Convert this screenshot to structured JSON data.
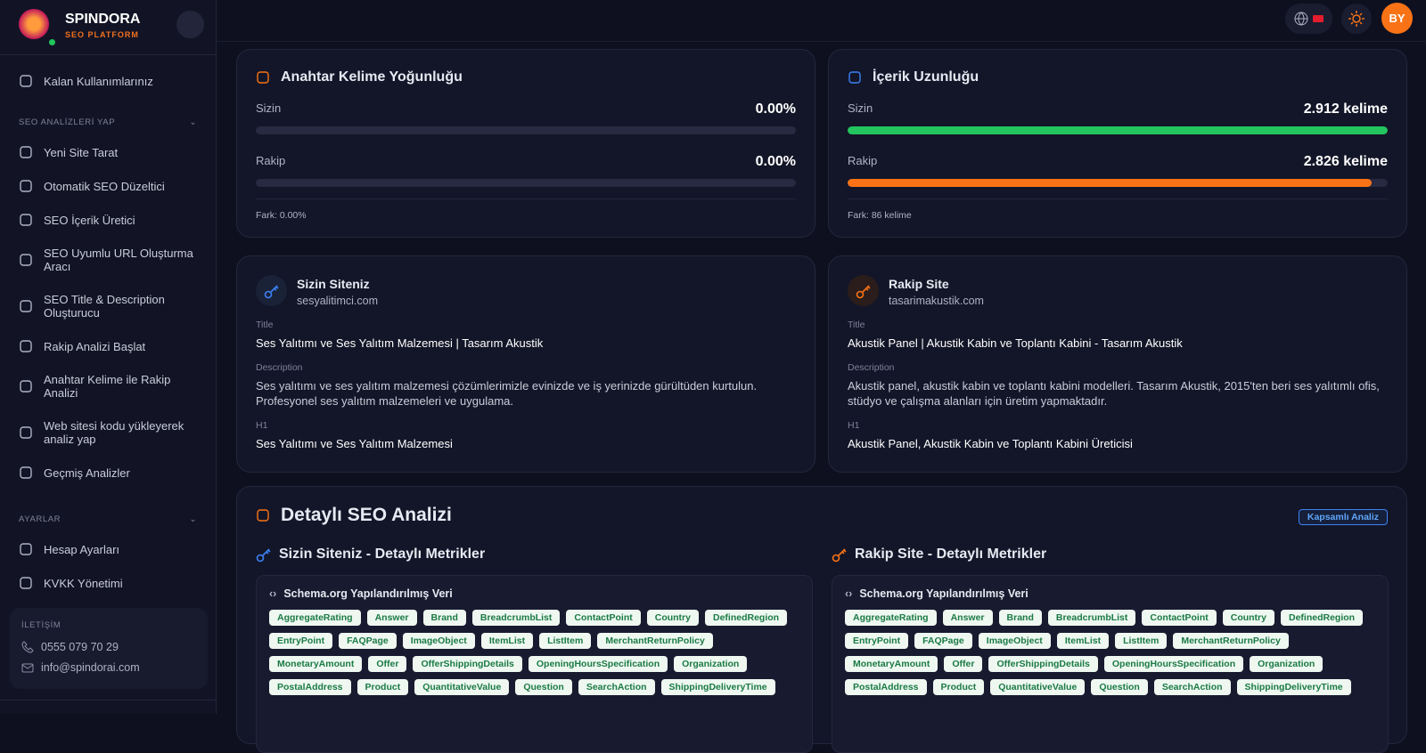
{
  "sidebar": {
    "brand": "SPINDORA",
    "tagline": "SEO PLATFORM",
    "usage": "Kalan Kullanımlarınız",
    "sections": [
      {
        "title": "SEO ANALİZLERİ YAP",
        "items": [
          "Yeni Site Tarat",
          "Otomatik SEO Düzeltici",
          "SEO İçerik Üretici",
          "SEO Uyumlu URL Oluşturma Aracı",
          "SEO Title & Description Oluşturucu",
          "Rakip Analizi Başlat",
          "Anahtar Kelime ile Rakip Analizi",
          "Web sitesi kodu yükleyerek analiz yap",
          "Geçmiş Analizler"
        ]
      },
      {
        "title": "AYARLAR",
        "items": [
          "Hesap Ayarları",
          "KVKK Yönetimi"
        ]
      }
    ],
    "contact": {
      "title": "İLETİŞİM",
      "phone": "0555 079 70 29",
      "email": "info@spindorai.com"
    }
  },
  "header": {
    "avatar": "BY"
  },
  "metrics": [
    {
      "title": "Anahtar Kelime Yoğunluğu",
      "rows": [
        {
          "label": "Sizin",
          "value": 0,
          "value_label": "0.00%"
        },
        {
          "label": "Rakip",
          "value": 0,
          "value_label": "0.00%"
        }
      ],
      "diff": "Fark: 0.00%"
    },
    {
      "title": "İçerik Uzunluğu",
      "rows": [
        {
          "label": "Sizin",
          "value": 2912,
          "value_label": "2.912 kelime"
        },
        {
          "label": "Rakip",
          "value": 2826,
          "value_label": "2.826 kelime"
        }
      ],
      "diff": "Fark: 86 kelime"
    }
  ],
  "sites": [
    {
      "heading": "Sizin Siteniz",
      "domain": "sesyalitimci.com",
      "fields": [
        {
          "label": "Title",
          "value": "Ses Yalıtımı ve Ses Yalıtım Malzemesi | Tasarım Akustik"
        },
        {
          "label": "Description",
          "value": "Ses yalıtımı ve ses yalıtım malzemesi çözümlerimizle evinizde ve iş yerinizde gürültüden kurtulun. Profesyonel ses yalıtım malzemeleri ve uygulama."
        },
        {
          "label": "H1",
          "value": "Ses Yalıtımı ve Ses Yalıtım Malzemesi"
        }
      ]
    },
    {
      "heading": "Rakip Site",
      "domain": "tasarimakustik.com",
      "fields": [
        {
          "label": "Title",
          "value": "Akustik Panel | Akustik Kabin ve Toplantı Kabini - Tasarım Akustik"
        },
        {
          "label": "Description",
          "value": "Akustik panel, akustik kabin ve toplantı kabini modelleri. Tasarım Akustik, 2015'ten beri ses yalıtımlı ofis, stüdyo ve çalışma alanları için üretim yapmaktadır."
        },
        {
          "label": "H1",
          "value": "Akustik Panel, Akustik Kabin ve Toplantı Kabini Üreticisi"
        }
      ]
    }
  ],
  "detailed": {
    "title": "Detaylı SEO Analizi",
    "badge": "Kapsamlı Analiz",
    "columns": [
      {
        "heading": "Sizin Siteniz - Detaylı Metrikler",
        "schema_title": "Schema.org Yapılandırılmış Veri",
        "tags": [
          "AggregateRating",
          "Answer",
          "Brand",
          "BreadcrumbList",
          "ContactPoint",
          "Country",
          "DefinedRegion",
          "EntryPoint",
          "FAQPage",
          "ImageObject",
          "ItemList",
          "ListItem",
          "MerchantReturnPolicy",
          "MonetaryAmount",
          "Offer",
          "OfferShippingDetails",
          "OpeningHoursSpecification",
          "Organization",
          "PostalAddress",
          "Product",
          "QuantitativeValue",
          "Question",
          "SearchAction",
          "ShippingDeliveryTime"
        ]
      },
      {
        "heading": "Rakip Site - Detaylı Metrikler",
        "schema_title": "Schema.org Yapılandırılmış Veri",
        "tags": [
          "AggregateRating",
          "Answer",
          "Brand",
          "BreadcrumbList",
          "ContactPoint",
          "Country",
          "DefinedRegion",
          "EntryPoint",
          "FAQPage",
          "ImageObject",
          "ItemList",
          "ListItem",
          "MerchantReturnPolicy",
          "MonetaryAmount",
          "Offer",
          "OfferShippingDetails",
          "OpeningHoursSpecification",
          "Organization",
          "PostalAddress",
          "Product",
          "QuantitativeValue",
          "Question",
          "SearchAction",
          "ShippingDeliveryTime"
        ]
      }
    ]
  }
}
